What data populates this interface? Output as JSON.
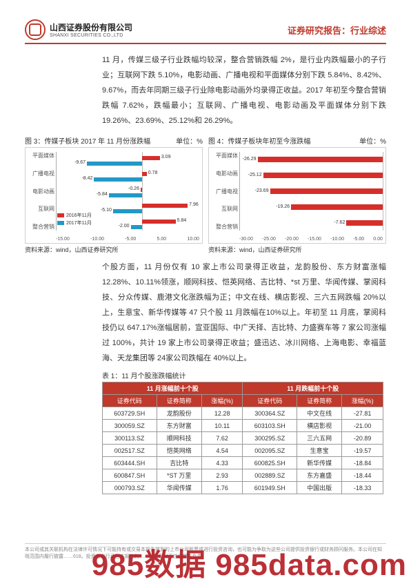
{
  "header": {
    "company_cn": "山西证券股份有限公司",
    "company_en": "SHANXI SECURITIES CO.,LTD",
    "report_title": "证券研究报告：行业综述"
  },
  "para1": "11 月，传媒三级子行业跌幅均较深，整合营销跌幅 2%，是行业内跌幅最小的子行业；互联网下跌 5.10%，电影动画、广播电视和平面媒体分别下跌 5.84%、8.42%、9.67%，而去年同期三级子行业除电影动画外均录得正收益。2017 年初至今整合营销跌幅 7.62%，跌幅最小；互联网、广播电视、电影动画及平面媒体分别下跌 19.26%、23.69%、25.12%和 26.29%。",
  "chart3": {
    "title_left": "图 3：传媒子板块 2017 年 11 月份涨跌幅",
    "title_right": "单位：%",
    "type": "grouped-horizontal-bar",
    "categories": [
      "平面媒体",
      "广播电视",
      "电影动画",
      "互联网",
      "整合营销"
    ],
    "series": [
      {
        "name": "2016年11月",
        "color": "#d62f2a",
        "values": [
          3.09,
          0.78,
          -0.26,
          7.96,
          5.84
        ]
      },
      {
        "name": "2017年11月",
        "color": "#2199c6",
        "values": [
          -9.67,
          -8.42,
          -5.84,
          -5.1,
          -2.0
        ]
      }
    ],
    "xlim": [
      -15,
      10
    ],
    "xticks": [
      "-15.00",
      "-10.00",
      "-5.00",
      "5.00",
      "10.00"
    ],
    "source": "资料来源：wind，山西证券研究所"
  },
  "chart4": {
    "title_left": "图 4：传媒子板块年初至今涨跌幅",
    "title_right": "单位：%",
    "type": "horizontal-bar",
    "categories": [
      "平面媒体",
      "电影动画",
      "广播电视",
      "互联网",
      "整合营销"
    ],
    "values": [
      -26.29,
      -25.12,
      -23.69,
      -19.26,
      -7.62
    ],
    "bar_color": "#d62f2a",
    "xlim": [
      -30,
      0
    ],
    "xticks": [
      "-30.00",
      "-25.00",
      "-20.00",
      "-15.00",
      "-10.00",
      "-5.00",
      "0.00"
    ],
    "source": "资料来源：wind，山西证券研究所"
  },
  "para2": "个股方面，11 月份仅有 10 家上市公司录得正收益，龙韵股份、东方财富涨幅 12.28%、10.11%领涨，顺网科技、恺英网络、吉比特、*st 万里、华闻传媒、掌阅科技、分众传媒、鹿港文化涨跌幅为正；中文在线、横店影视、三六五网跌幅 20%以上，生意宝、新华传媒等 47 只个股 11 月跌幅在10%以上。年初至 11 月底，掌阅科技仍以 647.17%涨幅居前，宣亚国际、中广天择、吉比特、力盛赛车等 7 家公司涨幅过 100%，共计 19 家上市公司录得正收益；盛迅达、冰川网络、上海电影、幸福蓝海、天龙集团等 24家公司跌幅在 40%以上。",
  "table": {
    "title": "表 1：11 月个股涨跌幅统计",
    "group_top": "11 月涨幅前十个股",
    "group_bottom": "11 月跌幅前十个股",
    "headers": [
      "证券代码",
      "证券简称",
      "涨幅(%)",
      "证券代码",
      "证券简称",
      "涨幅(%)"
    ],
    "rows": [
      [
        "603729.SH",
        "龙韵股份",
        "12.28",
        "300364.SZ",
        "中文在线",
        "-27.81"
      ],
      [
        "300059.SZ",
        "东方财富",
        "10.11",
        "603103.SH",
        "横店影视",
        "-21.00"
      ],
      [
        "300113.SZ",
        "顺网科技",
        "7.62",
        "300295.SZ",
        "三六五网",
        "-20.89"
      ],
      [
        "002517.SZ",
        "恺英网络",
        "4.54",
        "002095.SZ",
        "生意宝",
        "-19.57"
      ],
      [
        "603444.SH",
        "吉比特",
        "4.33",
        "600825.SH",
        "新华传媒",
        "-18.84"
      ],
      [
        "600847.SH",
        "*ST 万里",
        "2.93",
        "002889.SZ",
        "东方嘉盛",
        "-18.44"
      ],
      [
        "000793.SZ",
        "华闻传媒",
        "1.76",
        "601949.SH",
        "中国出版",
        "-18.33"
      ]
    ]
  },
  "footnote": "本公司或其关联机构在法律许可情况下可能持有或交易本报告提到的上市公司股票或进行投资咨询，也可能为争取为这些公司提供投资银行或财务顾问服务。本公司在知晓范围内履行披露……618。投资者自行承担本报告的……的信息对于任何损失负责。",
  "watermark": "985数据 985data.com"
}
